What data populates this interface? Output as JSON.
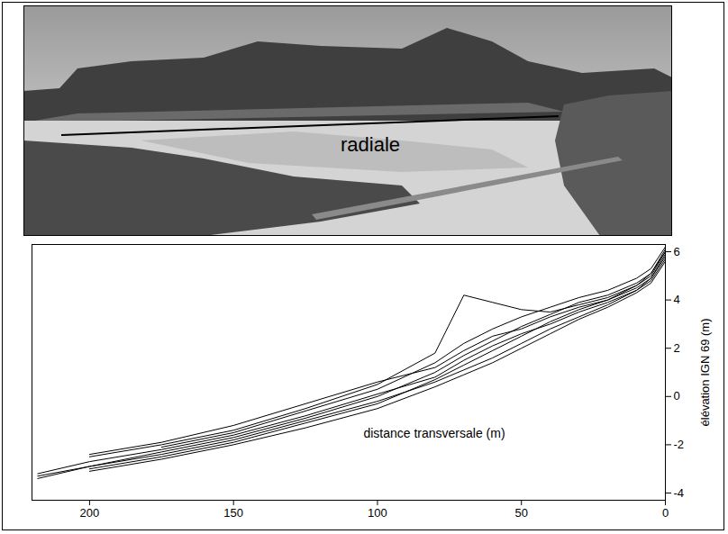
{
  "photo": {
    "annotation": "radiale"
  },
  "chart_data": {
    "type": "line",
    "xlabel": "distance transversale (m)",
    "ylabel": "élévation IGN 69 (m)",
    "color": "#000000",
    "grid": false,
    "xlim": [
      220,
      0
    ],
    "ylim": [
      -4.3,
      6.3
    ],
    "xticks": [
      200,
      150,
      100,
      50,
      0
    ],
    "yticks": [
      -4,
      -2,
      0,
      2,
      4,
      6
    ],
    "x": [
      0,
      5,
      10,
      20,
      30,
      40,
      50,
      60,
      70,
      80,
      100,
      125,
      150,
      175,
      200,
      218
    ],
    "series": [
      {
        "values": [
          6.1,
          5.1,
          4.7,
          4.2,
          3.9,
          3.4,
          2.9,
          2.3,
          1.7,
          1.0,
          0.0,
          -0.9,
          -1.7,
          -2.3,
          -2.9,
          -3.4
        ]
      },
      {
        "values": [
          5.8,
          4.9,
          4.5,
          4.0,
          3.6,
          3.1,
          2.5,
          1.9,
          1.3,
          0.7,
          -0.3,
          -1.1,
          -1.9,
          -2.5,
          -3.0,
          null
        ]
      },
      {
        "values": [
          6.2,
          5.3,
          4.9,
          4.4,
          4.1,
          3.7,
          3.3,
          2.8,
          2.2,
          1.4,
          0.3,
          -0.6,
          -1.5,
          -2.1,
          null,
          null
        ]
      },
      {
        "values": [
          5.6,
          4.7,
          4.3,
          3.7,
          3.2,
          2.6,
          2.0,
          1.4,
          0.9,
          0.4,
          -0.5,
          -1.3,
          -2.0,
          -2.6,
          -3.1,
          null
        ]
      },
      {
        "values": [
          6.0,
          5.0,
          4.6,
          4.1,
          3.8,
          3.5,
          3.6,
          3.9,
          4.2,
          1.8,
          0.5,
          -0.5,
          -1.4,
          -2.0,
          -2.5,
          null
        ]
      },
      {
        "values": [
          5.9,
          4.9,
          4.4,
          3.9,
          3.5,
          3.0,
          2.6,
          2.1,
          1.5,
          0.8,
          0.1,
          -0.8,
          -1.6,
          -2.2,
          -2.7,
          -3.2
        ]
      },
      {
        "values": [
          6.0,
          5.1,
          4.6,
          4.0,
          3.7,
          3.3,
          2.8,
          2.5,
          1.9,
          1.2,
          0.6,
          -0.3,
          -1.2,
          -1.9,
          -2.4,
          null
        ]
      },
      {
        "values": [
          5.7,
          4.8,
          4.4,
          3.8,
          3.3,
          2.8,
          2.2,
          1.6,
          1.1,
          0.6,
          -0.2,
          -1.0,
          -1.8,
          -2.4,
          -2.9,
          -3.3
        ]
      }
    ]
  }
}
